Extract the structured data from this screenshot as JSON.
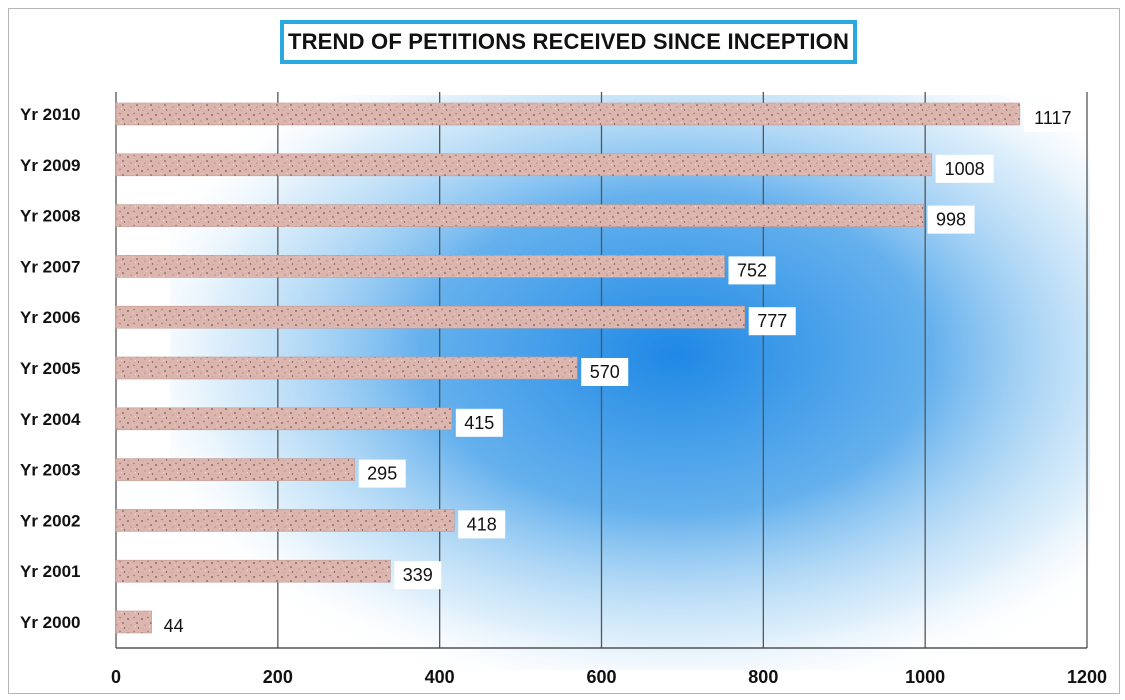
{
  "chart_data": {
    "type": "bar",
    "orientation": "horizontal",
    "title": "TREND OF PETITIONS RECEIVED SINCE INCEPTION",
    "categories": [
      "Yr 2010",
      "Yr 2009",
      "Yr 2008",
      "Yr 2007",
      "Yr 2006",
      "Yr 2005",
      "Yr 2004",
      "Yr 2003",
      "Yr 2002",
      "Yr 2001",
      "Yr 2000"
    ],
    "values": [
      1117,
      1008,
      998,
      752,
      777,
      570,
      415,
      295,
      418,
      339,
      44
    ],
    "value_labels": [
      "1117",
      "1008",
      "998",
      "752",
      "777",
      "570",
      "415",
      "295",
      "418",
      "339",
      "44"
    ],
    "xlim": [
      0,
      1200
    ],
    "xticks": [
      "0",
      "200",
      "400",
      "600",
      "800",
      "1000",
      "1200"
    ],
    "xlabel": "",
    "ylabel": "",
    "grid": true,
    "legend": "none",
    "colors": {
      "bar_fill": "#d9b0a8",
      "bar_speckle": "#7a5f5a",
      "background_glow": "#1e88e5",
      "title_border": "#2aa9df",
      "gridline": "#555555"
    }
  }
}
